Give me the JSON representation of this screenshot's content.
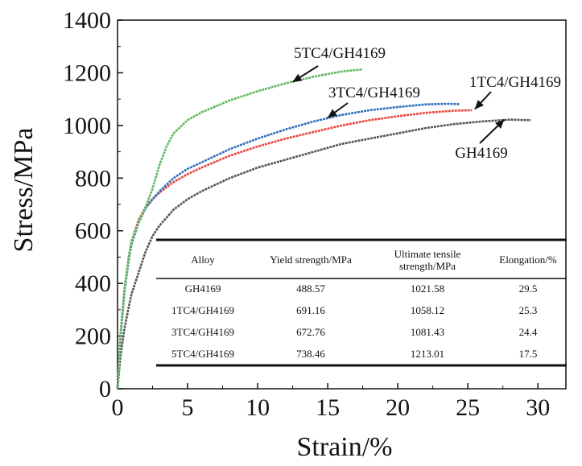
{
  "chart_data": {
    "type": "line",
    "title": "",
    "xlabel": "Strain/%",
    "ylabel": "Stress/MPa",
    "xlim": [
      0,
      32
    ],
    "ylim": [
      0,
      1400
    ],
    "x_ticks": [
      0,
      5,
      10,
      15,
      20,
      25,
      30
    ],
    "y_ticks": [
      0,
      200,
      400,
      600,
      800,
      1000,
      1200,
      1400
    ],
    "grid": false,
    "series": [
      {
        "name": "GH4169",
        "color": "#555555",
        "x": [
          0,
          0.2,
          0.5,
          0.8,
          1.0,
          1.5,
          2.0,
          2.5,
          3.0,
          4.0,
          5.0,
          6.0,
          8.0,
          10.0,
          12.0,
          14.0,
          16.0,
          18.0,
          20.0,
          22.0,
          24.0,
          26.0,
          28.0,
          29.5
        ],
        "y": [
          0,
          120,
          230,
          310,
          360,
          440,
          520,
          580,
          620,
          680,
          720,
          750,
          800,
          840,
          870,
          900,
          930,
          950,
          970,
          990,
          1005,
          1015,
          1022,
          1020
        ]
      },
      {
        "name": "1TC4/GH4169",
        "color": "#e8453c",
        "x": [
          0,
          0.2,
          0.5,
          0.8,
          1.0,
          1.5,
          2.0,
          2.5,
          3.0,
          4.0,
          5.0,
          6.0,
          8.0,
          10.0,
          12.0,
          14.0,
          16.0,
          18.0,
          20.0,
          22.0,
          24.0,
          25.3
        ],
        "y": [
          0,
          200,
          380,
          500,
          560,
          640,
          690,
          720,
          745,
          785,
          815,
          840,
          885,
          920,
          950,
          975,
          1000,
          1020,
          1035,
          1048,
          1056,
          1058
        ]
      },
      {
        "name": "3TC4/GH4169",
        "color": "#2f6fba",
        "x": [
          0,
          0.2,
          0.5,
          0.8,
          1.0,
          1.5,
          2.0,
          2.5,
          3.0,
          4.0,
          5.0,
          6.0,
          8.0,
          10.0,
          12.0,
          14.0,
          16.0,
          18.0,
          20.0,
          22.0,
          23.5,
          24.4
        ],
        "y": [
          0,
          190,
          370,
          490,
          550,
          630,
          685,
          720,
          750,
          800,
          835,
          860,
          910,
          950,
          985,
          1015,
          1040,
          1058,
          1070,
          1080,
          1082,
          1081
        ]
      },
      {
        "name": "5TC4/GH4169",
        "color": "#5cb85c",
        "x": [
          0,
          0.2,
          0.5,
          0.8,
          1.0,
          1.5,
          2.0,
          2.5,
          3.0,
          3.5,
          4.0,
          5.0,
          6.0,
          8.0,
          10.0,
          12.0,
          14.0,
          16.0,
          17.5
        ],
        "y": [
          0,
          200,
          380,
          500,
          560,
          630,
          690,
          760,
          850,
          920,
          970,
          1020,
          1050,
          1095,
          1130,
          1160,
          1185,
          1205,
          1213
        ]
      }
    ],
    "annotations": [
      {
        "text": "5TC4/GH4169",
        "arrow_to": [
          12.5,
          1165
        ]
      },
      {
        "text": "3TC4/GH4169",
        "arrow_to": [
          15.0,
          1030
        ]
      },
      {
        "text": "1TC4/GH4169",
        "arrow_to": [
          25.5,
          1062
        ]
      },
      {
        "text": "GH4169",
        "arrow_to": [
          27.6,
          1022
        ]
      }
    ],
    "inset_table": {
      "columns": [
        "Alloy",
        "Yield strength/MPa",
        "Ultimate tensile strength/MPa",
        "Elongation/%"
      ],
      "rows": [
        [
          "GH4169",
          "488.57",
          "1021.58",
          "29.5"
        ],
        [
          "1TC4/GH4169",
          "691.16",
          "1058.12",
          "25.3"
        ],
        [
          "3TC4/GH4169",
          "672.76",
          "1081.43",
          "24.4"
        ],
        [
          "5TC4/GH4169",
          "738.46",
          "1213.01",
          "17.5"
        ]
      ]
    }
  }
}
